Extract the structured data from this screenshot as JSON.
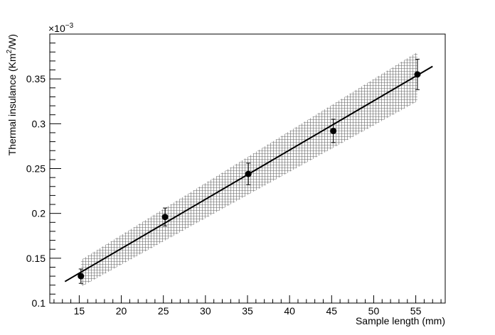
{
  "chart_data": {
    "type": "scatter",
    "xlabel": "Sample length (mm)",
    "ylabel_main": "Thermal insulance (Km",
    "ylabel_sup": "2",
    "ylabel_end": "/W)",
    "y_exponent_base": "×10",
    "y_exponent_power": "−3",
    "xlim": [
      11.5,
      58.5
    ],
    "ylim": [
      0.1,
      0.4
    ],
    "x_ticks": [
      15,
      20,
      25,
      30,
      35,
      40,
      45,
      50,
      55
    ],
    "x_tick_labels": [
      "15",
      "20",
      "25",
      "30",
      "35",
      "40",
      "45",
      "50",
      "55"
    ],
    "y_ticks": [
      0.1,
      0.15,
      0.2,
      0.25,
      0.3,
      0.35
    ],
    "y_tick_labels": [
      "0.1",
      "0.15",
      "0.2",
      "0.25",
      "0.3",
      "0.35"
    ],
    "grid": false,
    "points": [
      {
        "x": 15.2,
        "y": 0.13,
        "yerr": 0.008
      },
      {
        "x": 25.2,
        "y": 0.196,
        "yerr": 0.01
      },
      {
        "x": 35.1,
        "y": 0.244,
        "yerr": 0.012
      },
      {
        "x": 45.2,
        "y": 0.292,
        "yerr": 0.013
      },
      {
        "x": 55.2,
        "y": 0.355,
        "yerr": 0.017
      }
    ],
    "fit_line": {
      "x": [
        13.3,
        57.0
      ],
      "y": [
        0.124,
        0.364
      ]
    },
    "confidence_band": {
      "x": [
        15.2,
        55.2
      ],
      "lower": [
        0.118,
        0.325
      ],
      "upper": [
        0.148,
        0.38
      ]
    },
    "colors": {
      "markers": "#000000",
      "fit": "#000000",
      "band": "#555555"
    }
  }
}
